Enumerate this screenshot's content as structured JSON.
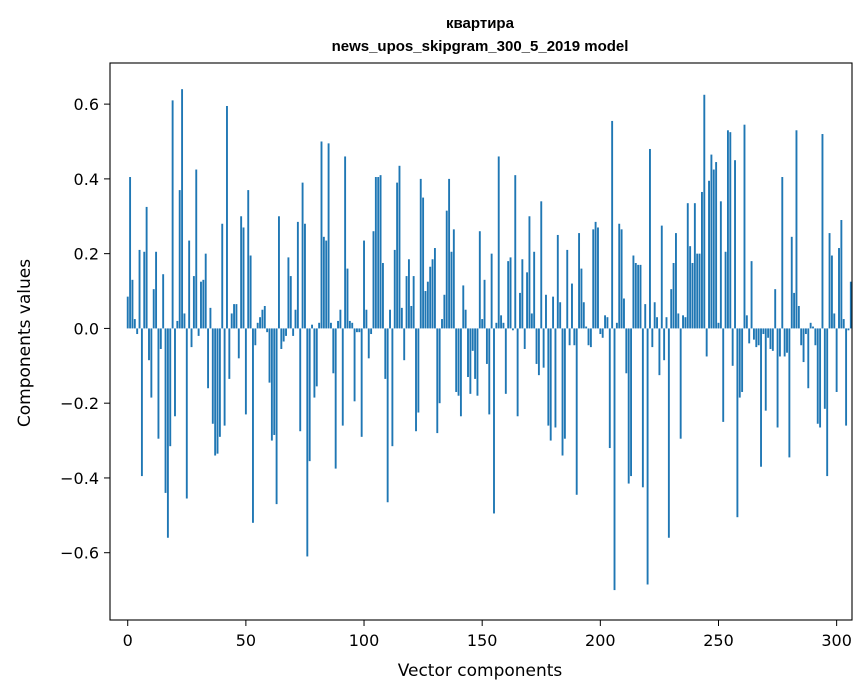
{
  "chart_data": {
    "type": "bar",
    "title_line1": "квартира",
    "title_line2": "news_upos_skipgram_300_5_2019 model",
    "xlabel": "Vector components",
    "ylabel": "Components values",
    "xlim": [
      -7.5,
      306.5
    ],
    "ylim": [
      -0.78,
      0.71
    ],
    "xticks": [
      0,
      50,
      100,
      150,
      200,
      250,
      300
    ],
    "yticks": [
      -0.6,
      -0.4,
      -0.2,
      0.0,
      0.2,
      0.4,
      0.6
    ],
    "ytick_labels": [
      "−0.6",
      "−0.4",
      "−0.2",
      "0.0",
      "0.2",
      "0.4",
      "0.6"
    ],
    "bar_color": "#1f77b4",
    "values": [
      0.085,
      0.405,
      0.13,
      0.025,
      -0.015,
      0.21,
      -0.395,
      0.205,
      0.325,
      -0.085,
      -0.185,
      0.105,
      0.205,
      -0.295,
      -0.055,
      0.145,
      -0.44,
      -0.56,
      -0.315,
      0.61,
      -0.235,
      0.02,
      0.37,
      0.64,
      0.04,
      -0.455,
      0.235,
      -0.05,
      0.14,
      0.425,
      -0.02,
      0.125,
      0.13,
      0.2,
      -0.16,
      0.055,
      -0.255,
      -0.34,
      -0.335,
      -0.29,
      0.28,
      -0.26,
      0.595,
      -0.135,
      0.04,
      0.065,
      0.065,
      -0.08,
      0.3,
      0.27,
      -0.23,
      0.37,
      0.195,
      -0.52,
      -0.045,
      0.015,
      0.03,
      0.05,
      0.06,
      -0.01,
      -0.145,
      -0.3,
      -0.285,
      -0.47,
      0.3,
      -0.055,
      -0.035,
      -0.02,
      0.19,
      0.14,
      -0.02,
      0.05,
      0.285,
      -0.275,
      0.39,
      0.28,
      -0.61,
      -0.355,
      0.01,
      -0.185,
      -0.155,
      0.015,
      0.5,
      0.245,
      0.235,
      0.495,
      0.015,
      -0.12,
      -0.375,
      0.02,
      0.05,
      -0.26,
      0.46,
      0.16,
      0.02,
      0.015,
      -0.195,
      -0.01,
      -0.01,
      -0.29,
      0.235,
      0.05,
      -0.08,
      -0.015,
      0.26,
      0.405,
      0.405,
      0.41,
      0.175,
      -0.135,
      -0.465,
      0.05,
      -0.315,
      0.21,
      0.39,
      0.435,
      0.055,
      -0.085,
      0.14,
      0.185,
      0.06,
      0.14,
      -0.275,
      -0.225,
      0.4,
      0.35,
      0.1,
      0.125,
      0.165,
      0.185,
      0.215,
      -0.28,
      -0.2,
      0.025,
      0.09,
      0.315,
      0.4,
      0.205,
      0.265,
      -0.17,
      -0.18,
      -0.235,
      0.115,
      0.05,
      -0.13,
      -0.175,
      -0.06,
      -0.135,
      -0.18,
      0.26,
      0.025,
      0.13,
      -0.095,
      -0.23,
      0.2,
      -0.495,
      0.015,
      0.46,
      0.035,
      0.015,
      -0.175,
      0.18,
      0.19,
      -0.005,
      0.41,
      -0.235,
      0.095,
      0.185,
      -0.055,
      0.15,
      0.3,
      0.04,
      0.205,
      -0.095,
      -0.125,
      0.34,
      -0.105,
      0.09,
      -0.26,
      -0.3,
      0.085,
      -0.265,
      0.25,
      0.07,
      -0.34,
      -0.295,
      0.21,
      -0.045,
      0.12,
      -0.045,
      -0.445,
      0.255,
      0.16,
      0.07,
      0.005,
      -0.045,
      -0.05,
      0.265,
      0.285,
      0.27,
      -0.015,
      -0.025,
      0.035,
      0.03,
      -0.32,
      0.555,
      -0.7,
      0.015,
      0.28,
      0.265,
      0.08,
      -0.12,
      -0.415,
      -0.395,
      0.195,
      0.175,
      0.17,
      0.17,
      -0.425,
      0.065,
      -0.685,
      0.48,
      -0.05,
      0.07,
      0.03,
      -0.125,
      0.275,
      -0.085,
      0.03,
      -0.56,
      0.105,
      0.175,
      0.255,
      0.04,
      -0.295,
      0.035,
      0.03,
      0.335,
      0.22,
      0.175,
      0.335,
      0.2,
      0.2,
      0.365,
      0.625,
      -0.075,
      0.395,
      0.465,
      0.425,
      0.445,
      0.015,
      0.34,
      -0.25,
      0.205,
      0.53,
      0.525,
      -0.1,
      0.45,
      -0.505,
      -0.185,
      -0.17,
      0.545,
      0.035,
      -0.04,
      0.18,
      -0.03,
      -0.05,
      -0.045,
      -0.37,
      -0.015,
      -0.22,
      -0.025,
      -0.055,
      -0.06,
      0.105,
      -0.265,
      -0.075,
      0.405,
      -0.075,
      -0.065,
      -0.345,
      0.245,
      0.095,
      0.53,
      0.06,
      -0.045,
      -0.09,
      -0.015,
      -0.16,
      0.015,
      0.005,
      -0.045,
      -0.255,
      -0.265,
      0.52,
      -0.215,
      -0.395,
      0.255,
      0.195,
      0.04,
      -0.17,
      0.215,
      0.29,
      0.025,
      -0.26,
      -0.005,
      0.125,
      0.0
    ]
  }
}
